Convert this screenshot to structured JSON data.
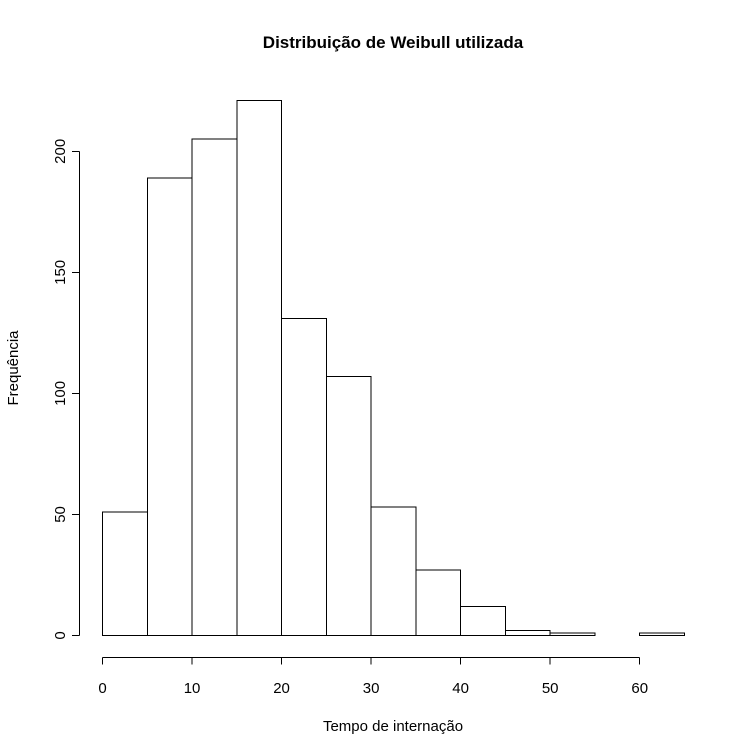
{
  "chart_data": {
    "type": "bar",
    "title": "Distribuição de Weibull utilizada",
    "xlabel": "Tempo de internação",
    "ylabel": "Frequência",
    "bin_edges": [
      0,
      5,
      10,
      15,
      20,
      25,
      30,
      35,
      40,
      45,
      50,
      55,
      60,
      65
    ],
    "values": [
      51,
      189,
      205,
      221,
      131,
      107,
      53,
      27,
      12,
      2,
      1,
      0,
      1
    ],
    "xlim": [
      0,
      65
    ],
    "ylim": [
      0,
      221
    ],
    "x_ticks": [
      0,
      10,
      20,
      30,
      40,
      50,
      60
    ],
    "y_ticks": [
      0,
      50,
      100,
      150,
      200
    ],
    "grid": false,
    "legend": "none",
    "colors": {
      "bar_fill": "#ffffff",
      "bar_stroke": "#000000"
    }
  }
}
